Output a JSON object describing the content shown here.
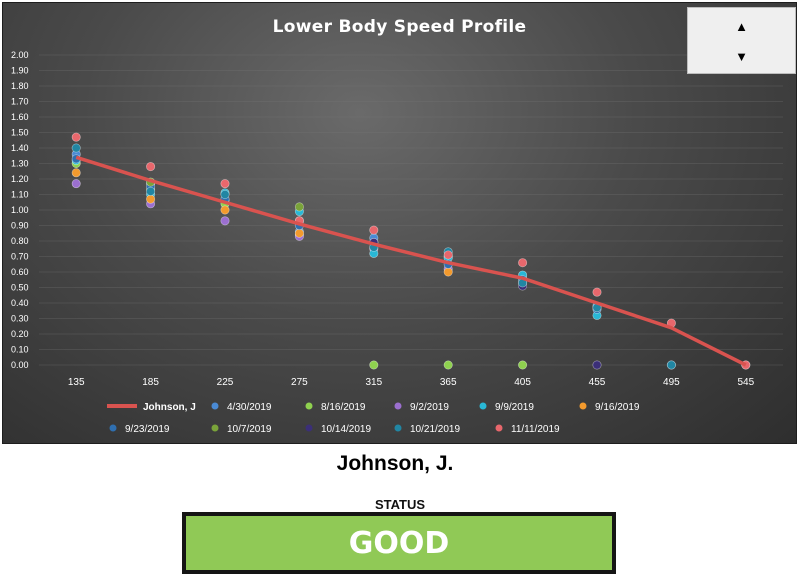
{
  "spinner": {
    "up_icon": "triangle-up-icon",
    "down_icon": "triangle-down-icon",
    "up_glyph": "▲",
    "down_glyph": "▼"
  },
  "player": {
    "name": "Johnson, J."
  },
  "status": {
    "label": "STATUS",
    "value": "GOOD",
    "color": "#90c956"
  },
  "chart_data": {
    "type": "line",
    "title": "Lower Body Speed Profile",
    "xlabel": "",
    "ylabel": "",
    "categories": [
      "135",
      "185",
      "225",
      "275",
      "315",
      "365",
      "405",
      "455",
      "495",
      "545"
    ],
    "ylim": [
      0,
      2
    ],
    "yticks": [
      "0.00",
      "0.10",
      "0.20",
      "0.30",
      "0.40",
      "0.50",
      "0.60",
      "0.70",
      "0.80",
      "0.90",
      "1.00",
      "1.10",
      "1.20",
      "1.30",
      "1.40",
      "1.50",
      "1.60",
      "1.70",
      "1.80",
      "1.90",
      "2.00"
    ],
    "grid": true,
    "legend_position": "bottom",
    "series": [
      {
        "name": "Johnson, J",
        "kind": "line",
        "color": "#d9534f",
        "values": [
          1.34,
          1.19,
          1.05,
          0.91,
          0.78,
          0.66,
          0.56,
          0.4,
          0.24,
          0.0
        ]
      },
      {
        "name": "4/30/2019",
        "kind": "scatter",
        "color": "#4a8ad4",
        "values": [
          1.36,
          1.17,
          1.06,
          0.86,
          0.82,
          0.7,
          0.56,
          0.38,
          null,
          null
        ]
      },
      {
        "name": "8/16/2019",
        "kind": "scatter",
        "color": "#8fd14f",
        "values": [
          1.3,
          1.13,
          1.04,
          0.84,
          0.0,
          0.0,
          0.0,
          null,
          null,
          null
        ]
      },
      {
        "name": "9/2/2019",
        "kind": "scatter",
        "color": "#9b6fcf",
        "values": [
          1.17,
          1.04,
          0.93,
          0.83,
          0.75,
          0.62,
          0.53,
          null,
          null,
          null
        ]
      },
      {
        "name": "9/9/2019",
        "kind": "scatter",
        "color": "#29b8d6",
        "values": [
          1.32,
          1.1,
          1.11,
          0.99,
          0.72,
          0.69,
          0.58,
          0.32,
          null,
          null
        ]
      },
      {
        "name": "9/16/2019",
        "kind": "scatter",
        "color": "#f39a2d",
        "values": [
          1.24,
          1.07,
          1.0,
          0.85,
          null,
          0.6,
          null,
          null,
          null,
          null
        ]
      },
      {
        "name": "9/23/2019",
        "kind": "scatter",
        "color": "#2f6fb0",
        "values": [
          1.33,
          1.15,
          1.07,
          0.9,
          0.79,
          0.65,
          0.55,
          0.36,
          0.0,
          null
        ]
      },
      {
        "name": "10/7/2019",
        "kind": "scatter",
        "color": "#7aa33a",
        "values": [
          null,
          1.18,
          null,
          1.02,
          null,
          null,
          null,
          null,
          null,
          null
        ]
      },
      {
        "name": "10/14/2019",
        "kind": "scatter",
        "color": "#3b2f78",
        "values": [
          null,
          null,
          null,
          null,
          0.79,
          null,
          0.51,
          0.0,
          null,
          null
        ]
      },
      {
        "name": "10/21/2019",
        "kind": "scatter",
        "color": "#2186a3",
        "values": [
          1.4,
          1.12,
          1.1,
          0.93,
          0.76,
          0.73,
          0.53,
          0.37,
          0.0,
          0.0
        ]
      },
      {
        "name": "11/11/2019",
        "kind": "scatter",
        "color": "#e8676c",
        "values": [
          1.47,
          1.28,
          1.17,
          0.93,
          0.87,
          0.71,
          0.66,
          0.47,
          0.27,
          0.0
        ]
      }
    ]
  }
}
